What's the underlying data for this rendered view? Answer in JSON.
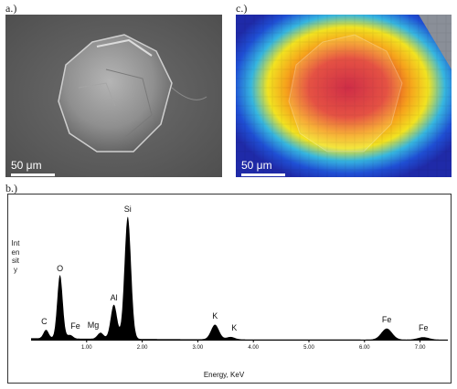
{
  "figure": {
    "panel_a": {
      "label": "a.)",
      "scale_text": "50 μm"
    },
    "panel_b": {
      "label": "b.)"
    },
    "panel_c": {
      "label": "c.)",
      "scale_text": "50 μm"
    }
  },
  "chart_data": {
    "type": "line",
    "xlabel": "Energy, KeV",
    "ylabel": "Intensity",
    "xlim": [
      0,
      7.5
    ],
    "x_ticks": [
      "1.00",
      "2.00",
      "3.00",
      "4.00",
      "5.00",
      "6.00",
      "7.00"
    ],
    "x_tick_values": [
      1,
      2,
      3,
      4,
      5,
      6,
      7
    ],
    "peaks": [
      {
        "label": "C",
        "x": 0.27,
        "y": 0.07
      },
      {
        "label": "O",
        "x": 0.52,
        "y": 0.52
      },
      {
        "label": "Fe",
        "x": 0.7,
        "y": 0.03
      },
      {
        "label": "Mg",
        "x": 1.25,
        "y": 0.05
      },
      {
        "label": "Al",
        "x": 1.49,
        "y": 0.28
      },
      {
        "label": "Si",
        "x": 1.74,
        "y": 1.0
      },
      {
        "label": "K",
        "x": 3.31,
        "y": 0.12
      },
      {
        "label": "K",
        "x": 3.59,
        "y": 0.02
      },
      {
        "label": "Fe",
        "x": 6.4,
        "y": 0.09
      },
      {
        "label": "Fe",
        "x": 7.06,
        "y": 0.02
      }
    ]
  }
}
